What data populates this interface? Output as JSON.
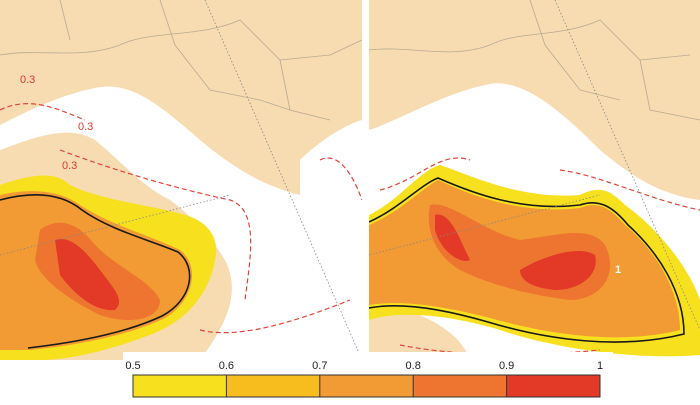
{
  "panels": [
    {
      "contour_labels": [
        "0.3",
        "0.3",
        "0.3"
      ]
    },
    {
      "contour_labels": [
        "1"
      ]
    }
  ],
  "colorbar": {
    "ticks": [
      0.5,
      0.6,
      0.7,
      0.8,
      0.9,
      1
    ],
    "colors": [
      "#f7e01e",
      "#f7bd1f",
      "#f29a33",
      "#ee7530",
      "#e23a26"
    ]
  }
}
